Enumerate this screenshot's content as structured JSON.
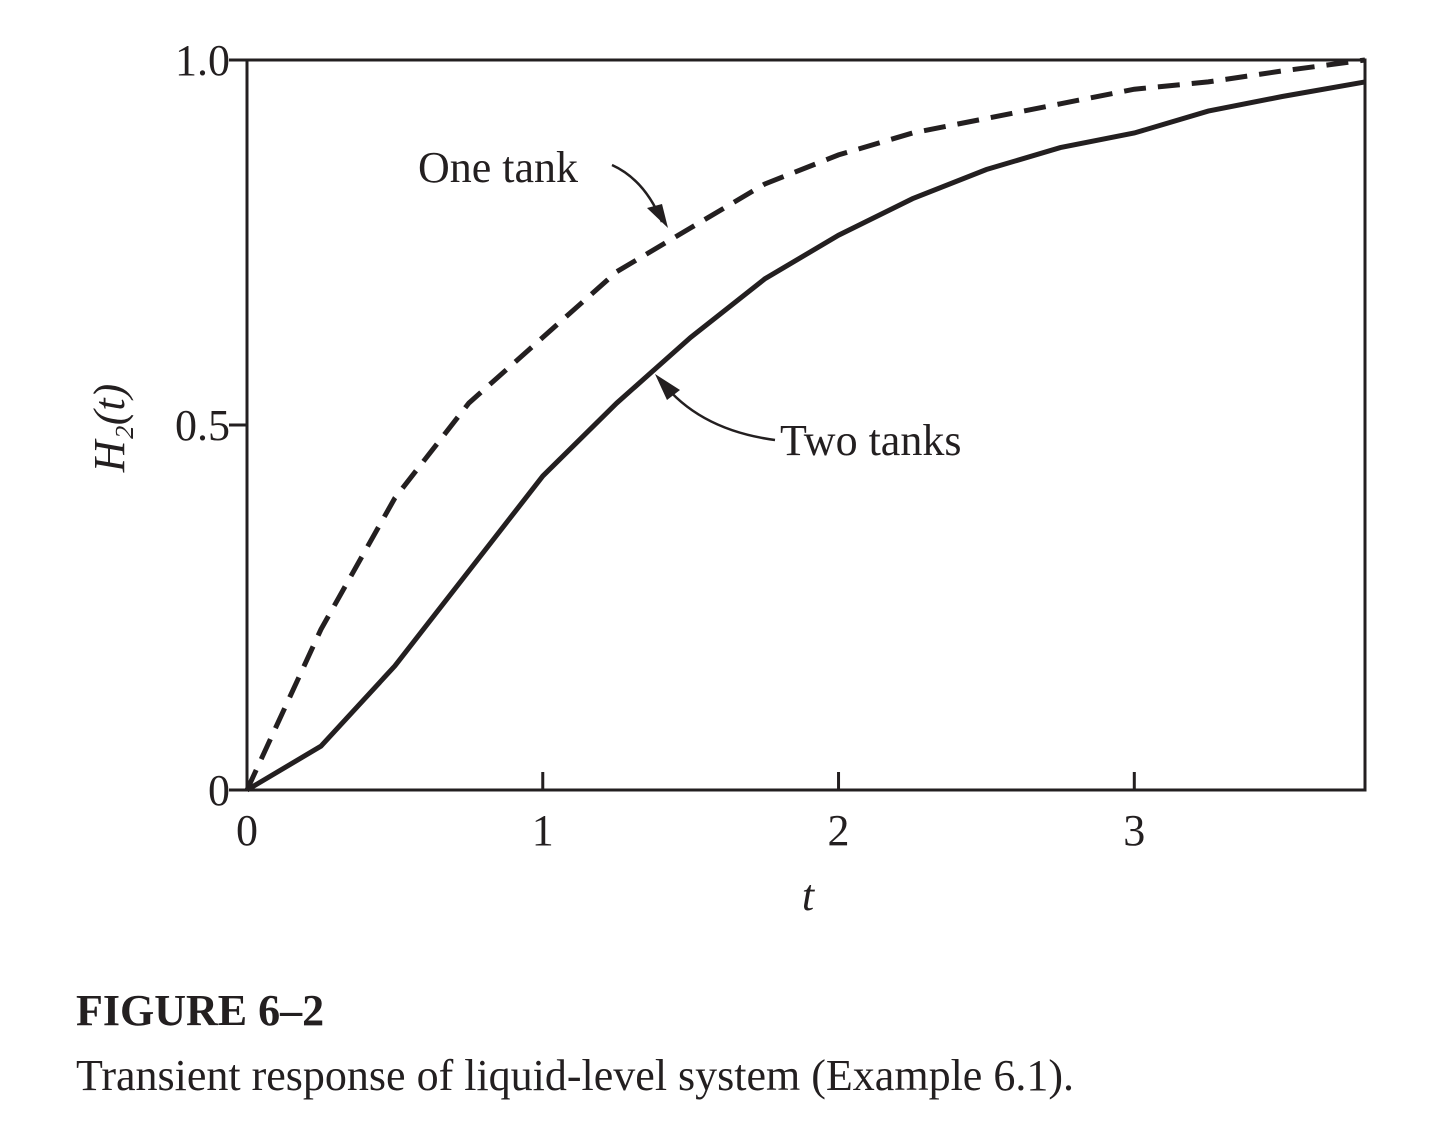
{
  "chart_data": {
    "type": "line",
    "x": [
      0,
      0.25,
      0.5,
      0.75,
      1,
      1.25,
      1.5,
      1.75,
      2,
      2.25,
      2.5,
      2.75,
      3,
      3.25,
      3.5,
      3.78
    ],
    "series": [
      {
        "name": "One tank",
        "color": "#231f20",
        "dash": true,
        "values": [
          0,
          0.22,
          0.4,
          0.53,
          0.62,
          0.71,
          0.77,
          0.83,
          0.87,
          0.9,
          0.92,
          0.94,
          0.96,
          0.97,
          0.985,
          1.0
        ]
      },
      {
        "name": "Two tanks",
        "color": "#231f20",
        "dash": false,
        "values": [
          0,
          0.06,
          0.17,
          0.3,
          0.43,
          0.53,
          0.62,
          0.7,
          0.76,
          0.81,
          0.85,
          0.88,
          0.9,
          0.93,
          0.95,
          0.97
        ]
      }
    ],
    "xlabel": "t",
    "ylabel": "H₂(t)",
    "xlim": [
      0,
      3.78
    ],
    "ylim": [
      0,
      1
    ],
    "xticks": [
      0,
      1,
      2,
      3
    ],
    "yticks": [
      0,
      0.5,
      {
        "value": 1,
        "label": "1.0"
      }
    ],
    "figure_label": "FIGURE 6–2",
    "caption": "Transient response of liquid-level system (Example 6.1)."
  }
}
